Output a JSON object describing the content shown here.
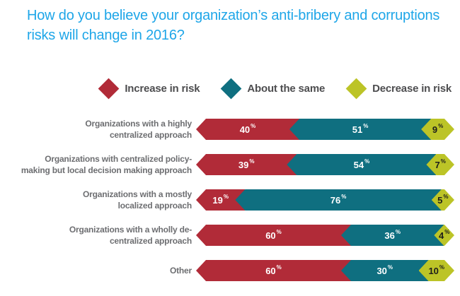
{
  "title": "How do you believe your organization’s anti-bribery and corruptions risks will change in 2016?",
  "colors": {
    "increase": "#B12B38",
    "same": "#0F6F80",
    "decrease": "#BCC427",
    "title": "#1EA6E8",
    "legend_text": "#4D4D4F",
    "label_text": "#6D6E71",
    "value_dark": "#1D1D1B"
  },
  "legend": {
    "items": [
      {
        "label": "Increase in risk",
        "color_key": "increase"
      },
      {
        "label": "About the same",
        "color_key": "same"
      },
      {
        "label": "Decrease in risk",
        "color_key": "decrease"
      }
    ]
  },
  "chart_data": {
    "type": "bar",
    "orientation": "horizontal",
    "stacked": true,
    "unit": "%",
    "xlim": [
      0,
      100
    ],
    "title": "How do you believe your organization’s anti-bribery and corruptions risks will change in 2016?",
    "series": [
      "Increase in risk",
      "About the same",
      "Decrease in risk"
    ],
    "rows": [
      {
        "label": "Organizations with a highly centralized approach",
        "label_lines": [
          "Organizations with a highly",
          "centralized approach"
        ],
        "values": [
          40,
          51,
          9
        ]
      },
      {
        "label": "Organizations with centralized policy-making but local decision making approach",
        "label_lines": [
          "Organizations with centralized policy-",
          "making but local decision making approach"
        ],
        "values": [
          39,
          54,
          7
        ]
      },
      {
        "label": "Organizations with a mostly localized approach",
        "label_lines": [
          "Organizations with a mostly",
          "localized approach"
        ],
        "values": [
          19,
          76,
          5
        ]
      },
      {
        "label": "Organizations with a wholly de-centralized approach",
        "label_lines": [
          "Organizations with a wholly de-",
          "centralized approach"
        ],
        "values": [
          60,
          36,
          4
        ]
      },
      {
        "label": "Other",
        "label_lines": [
          "Other"
        ],
        "values": [
          60,
          30,
          10
        ]
      }
    ]
  }
}
